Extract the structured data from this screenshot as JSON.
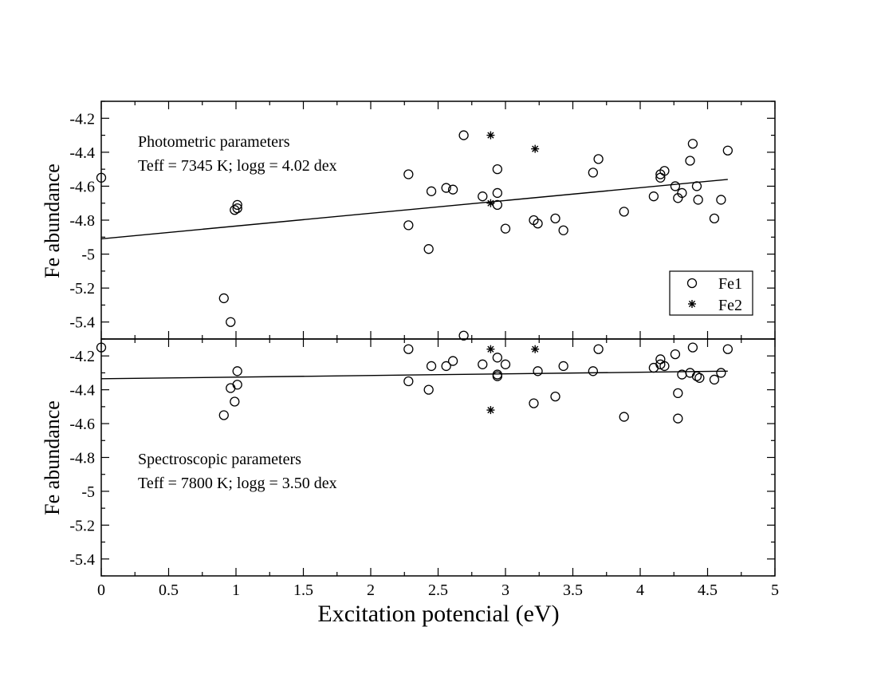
{
  "chart_data": [
    {
      "type": "scatter",
      "panel": "top",
      "ylabel": "Fe abundance",
      "xlim": [
        0,
        5
      ],
      "ylim": [
        -5.5,
        -4.1
      ],
      "yticks": [
        -4.2,
        -4.4,
        -4.6,
        -4.8,
        -5,
        -5.2,
        -5.4
      ],
      "ytick_labels": [
        "-4.2",
        "-4.4",
        "-4.6",
        "-4.8",
        "-5",
        "-5.2",
        "-5.4"
      ],
      "annotation": [
        "Photometric parameters",
        "Teff = 7345 K; logg = 4.02 dex"
      ],
      "legend": {
        "position": "lower-right",
        "entries": [
          {
            "label": "Fe1",
            "marker": "circle"
          },
          {
            "label": "Fe2",
            "marker": "star"
          }
        ]
      },
      "fit_line": {
        "x": [
          0,
          4.65
        ],
        "y": [
          -4.91,
          -4.56
        ]
      },
      "series": [
        {
          "name": "Fe1",
          "marker": "circle",
          "points": [
            [
              0.0,
              -4.55
            ],
            [
              0.91,
              -5.26
            ],
            [
              0.96,
              -5.4
            ],
            [
              0.99,
              -4.74
            ],
            [
              1.01,
              -4.73
            ],
            [
              1.01,
              -4.71
            ],
            [
              2.28,
              -4.53
            ],
            [
              2.28,
              -4.83
            ],
            [
              2.43,
              -4.97
            ],
            [
              2.45,
              -4.63
            ],
            [
              2.56,
              -4.61
            ],
            [
              2.61,
              -4.62
            ],
            [
              2.69,
              -4.3
            ],
            [
              2.83,
              -4.66
            ],
            [
              2.94,
              -4.5
            ],
            [
              2.94,
              -4.64
            ],
            [
              2.94,
              -4.71
            ],
            [
              3.0,
              -4.85
            ],
            [
              3.21,
              -4.8
            ],
            [
              3.24,
              -4.82
            ],
            [
              3.37,
              -4.79
            ],
            [
              3.43,
              -4.86
            ],
            [
              3.65,
              -4.52
            ],
            [
              3.69,
              -4.44
            ],
            [
              3.88,
              -4.75
            ],
            [
              4.1,
              -4.66
            ],
            [
              4.15,
              -4.53
            ],
            [
              4.15,
              -4.55
            ],
            [
              4.18,
              -4.51
            ],
            [
              4.26,
              -4.6
            ],
            [
              4.28,
              -4.67
            ],
            [
              4.31,
              -4.64
            ],
            [
              4.37,
              -4.45
            ],
            [
              4.39,
              -4.35
            ],
            [
              4.42,
              -4.6
            ],
            [
              4.43,
              -4.68
            ],
            [
              4.55,
              -4.79
            ],
            [
              4.6,
              -4.68
            ],
            [
              4.65,
              -4.39
            ]
          ]
        },
        {
          "name": "Fe2",
          "marker": "star",
          "points": [
            [
              2.89,
              -4.3
            ],
            [
              2.89,
              -4.7
            ],
            [
              3.22,
              -4.38
            ]
          ]
        }
      ]
    },
    {
      "type": "scatter",
      "panel": "bottom",
      "ylabel": "Fe abundance",
      "xlabel": "Excitation potencial (eV)",
      "xlim": [
        0,
        5
      ],
      "ylim": [
        -5.5,
        -4.1
      ],
      "xticks": [
        0,
        0.5,
        1,
        1.5,
        2,
        2.5,
        3,
        3.5,
        4,
        4.5,
        5
      ],
      "xtick_labels": [
        "0",
        "0.5",
        "1",
        "1.5",
        "2",
        "2.5",
        "3",
        "3.5",
        "4",
        "4.5",
        "5"
      ],
      "yticks": [
        -4.2,
        -4.4,
        -4.6,
        -4.8,
        -5,
        -5.2,
        -5.4
      ],
      "ytick_labels": [
        "-4.2",
        "-4.4",
        "-4.6",
        "-4.8",
        "-5",
        "-5.2",
        "-5.4"
      ],
      "annotation": [
        "Spectroscopic parameters",
        "Teff = 7800 K; logg = 3.50 dex"
      ],
      "fit_line": {
        "x": [
          0,
          4.65
        ],
        "y": [
          -4.335,
          -4.29
        ]
      },
      "series": [
        {
          "name": "Fe1",
          "marker": "circle",
          "points": [
            [
              0.0,
              -4.15
            ],
            [
              0.91,
              -4.55
            ],
            [
              0.96,
              -4.39
            ],
            [
              0.99,
              -4.47
            ],
            [
              1.01,
              -4.37
            ],
            [
              1.01,
              -4.29
            ],
            [
              2.28,
              -4.16
            ],
            [
              2.28,
              -4.35
            ],
            [
              2.43,
              -4.4
            ],
            [
              2.45,
              -4.26
            ],
            [
              2.56,
              -4.26
            ],
            [
              2.61,
              -4.23
            ],
            [
              2.69,
              -4.08
            ],
            [
              2.83,
              -4.25
            ],
            [
              2.94,
              -4.21
            ],
            [
              2.94,
              -4.31
            ],
            [
              2.94,
              -4.32
            ],
            [
              3.0,
              -4.25
            ],
            [
              3.21,
              -4.48
            ],
            [
              3.24,
              -4.29
            ],
            [
              3.37,
              -4.44
            ],
            [
              3.43,
              -4.26
            ],
            [
              3.65,
              -4.29
            ],
            [
              3.69,
              -4.16
            ],
            [
              3.88,
              -4.56
            ],
            [
              4.1,
              -4.27
            ],
            [
              4.15,
              -4.22
            ],
            [
              4.15,
              -4.25
            ],
            [
              4.18,
              -4.26
            ],
            [
              4.26,
              -4.19
            ],
            [
              4.28,
              -4.42
            ],
            [
              4.28,
              -4.57
            ],
            [
              4.31,
              -4.31
            ],
            [
              4.37,
              -4.3
            ],
            [
              4.39,
              -4.15
            ],
            [
              4.42,
              -4.32
            ],
            [
              4.44,
              -4.33
            ],
            [
              4.55,
              -4.34
            ],
            [
              4.6,
              -4.3
            ],
            [
              4.65,
              -4.16
            ]
          ]
        },
        {
          "name": "Fe2",
          "marker": "star",
          "points": [
            [
              2.89,
              -4.16
            ],
            [
              2.89,
              -4.52
            ],
            [
              3.22,
              -4.16
            ]
          ]
        }
      ]
    }
  ]
}
